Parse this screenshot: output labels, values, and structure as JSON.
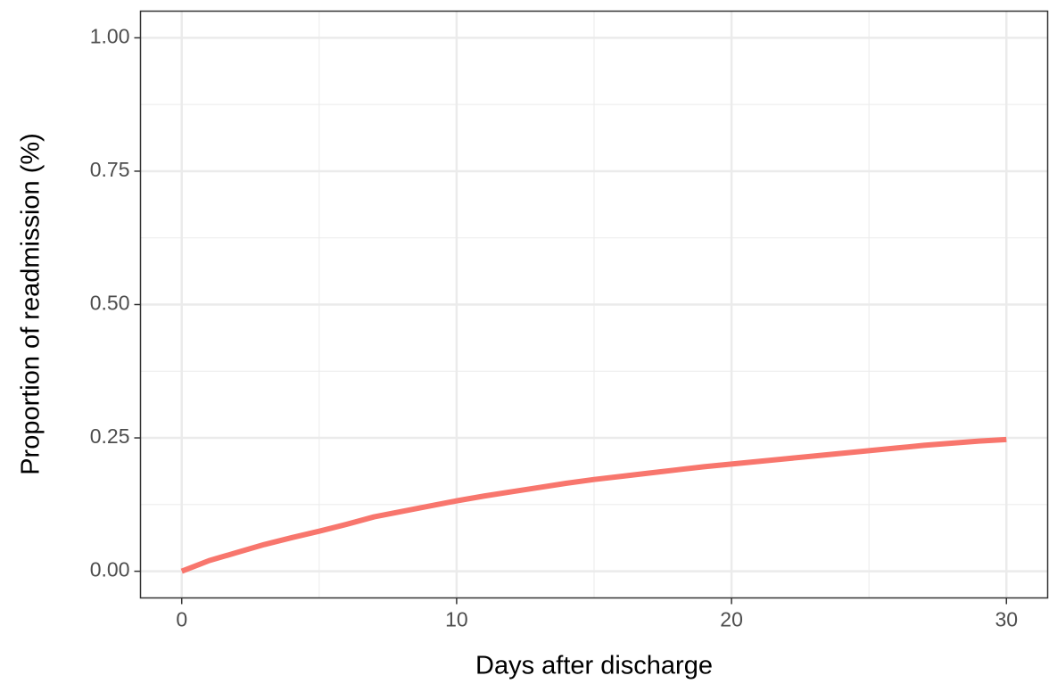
{
  "chart_data": {
    "type": "line",
    "x_label": "Days after discharge",
    "y_label": "Proportion of readmission (%)",
    "x": [
      0,
      1,
      2,
      3,
      4,
      5,
      6,
      7,
      8,
      9,
      10,
      11,
      12,
      13,
      14,
      15,
      16,
      17,
      18,
      19,
      20,
      21,
      22,
      23,
      24,
      25,
      26,
      27,
      28,
      29,
      30
    ],
    "series": [
      {
        "color": "#F8766D",
        "values": [
          0,
          0.02,
          0.035,
          0.05,
          0.063,
          0.075,
          0.088,
          0.102,
          0.112,
          0.122,
          0.132,
          0.141,
          0.149,
          0.157,
          0.165,
          0.172,
          0.178,
          0.184,
          0.19,
          0.196,
          0.201,
          0.206,
          0.211,
          0.216,
          0.221,
          0.226,
          0.231,
          0.236,
          0.24,
          0.244,
          0.247
        ]
      }
    ],
    "xlim": [
      -1.5,
      31.5
    ],
    "xticks": [
      0,
      10,
      20,
      30
    ],
    "ylim": [
      -0.05,
      1.05
    ],
    "yticks": [
      {
        "value": 0,
        "label": "0.00"
      },
      {
        "value": 0.25,
        "label": "0.25"
      },
      {
        "value": 0.5,
        "label": "0.50"
      },
      {
        "value": 0.75,
        "label": "0.75"
      },
      {
        "value": 1,
        "label": "1.00"
      }
    ],
    "grid": true,
    "minor_grid": true
  }
}
